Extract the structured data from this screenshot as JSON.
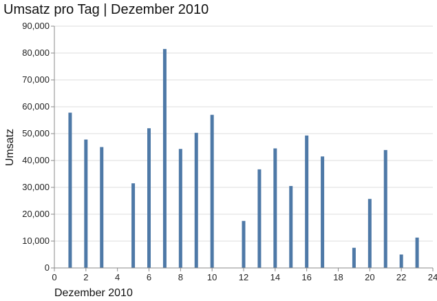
{
  "chart_data": {
    "type": "bar",
    "title": "Umsatz pro Tag | Dezember 2010",
    "xlabel": "Dezember 2010",
    "ylabel": "Umsatz",
    "xlim": [
      0,
      24
    ],
    "ylim": [
      0,
      90000
    ],
    "x_ticks": [
      "0",
      "2",
      "4",
      "6",
      "8",
      "10",
      "12",
      "14",
      "16",
      "18",
      "20",
      "22",
      "24"
    ],
    "y_ticks": [
      "0",
      "10,000",
      "20,000",
      "30,000",
      "40,000",
      "50,000",
      "60,000",
      "70,000",
      "80,000",
      "90,000"
    ],
    "grid": true,
    "bar_color": "#4e79a7",
    "points": [
      {
        "x": 1,
        "y": 57800
      },
      {
        "x": 2,
        "y": 47800
      },
      {
        "x": 3,
        "y": 45000
      },
      {
        "x": 5,
        "y": 31500
      },
      {
        "x": 6,
        "y": 52000
      },
      {
        "x": 7,
        "y": 81500
      },
      {
        "x": 8,
        "y": 44300
      },
      {
        "x": 9,
        "y": 50300
      },
      {
        "x": 10,
        "y": 57000
      },
      {
        "x": 12,
        "y": 17500
      },
      {
        "x": 13,
        "y": 36700
      },
      {
        "x": 14,
        "y": 44500
      },
      {
        "x": 15,
        "y": 30500
      },
      {
        "x": 16,
        "y": 49300
      },
      {
        "x": 17,
        "y": 41500
      },
      {
        "x": 19,
        "y": 7500
      },
      {
        "x": 20,
        "y": 25700
      },
      {
        "x": 21,
        "y": 43900
      },
      {
        "x": 22,
        "y": 5000
      },
      {
        "x": 23,
        "y": 11300
      }
    ]
  }
}
